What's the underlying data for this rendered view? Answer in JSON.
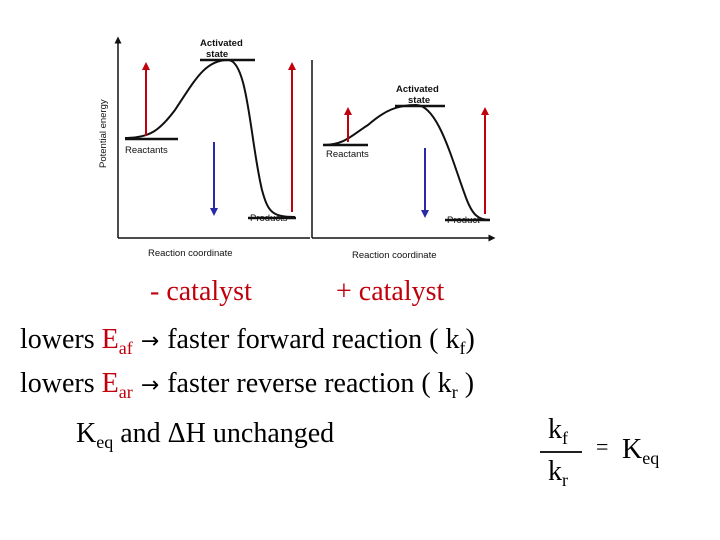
{
  "panel_left": {
    "activated_state": "Activated\nstate",
    "reactants": "Reactants",
    "products": "Products",
    "x_axis": "Reaction coordinate",
    "y_axis": "Potential energy"
  },
  "panel_right": {
    "activated_state": "Activated\nstate",
    "reactants": "Reactants",
    "products": "Product",
    "x_axis": "Reaction coordinate"
  },
  "text": {
    "minus_catalyst": "- catalyst",
    "plus_catalyst": "+ catalyst",
    "line1_prefix": "lowers ",
    "line1_E": "E",
    "line1_sub": "af",
    "line1_mid": "faster forward reaction ( k",
    "line1_ksub": "f",
    "line1_end": ")",
    "line2_prefix": "lowers ",
    "line2_E": "E",
    "line2_sub": "ar",
    "line2_mid": "faster reverse reaction  ( k",
    "line2_ksub": "r",
    "line2_end": " )",
    "line3_K": "K",
    "line3_Ksub": "eq",
    "line3_mid": " and ΔH  unchanged",
    "frac_num": "k",
    "frac_num_sub": "f",
    "frac_den": "k",
    "frac_den_sub": "r",
    "equals": "=",
    "keq_K": "K",
    "keq_sub": "eq",
    "arrow": "→"
  },
  "colors": {
    "red": "#c0000c",
    "blue": "#2a2aa8"
  }
}
